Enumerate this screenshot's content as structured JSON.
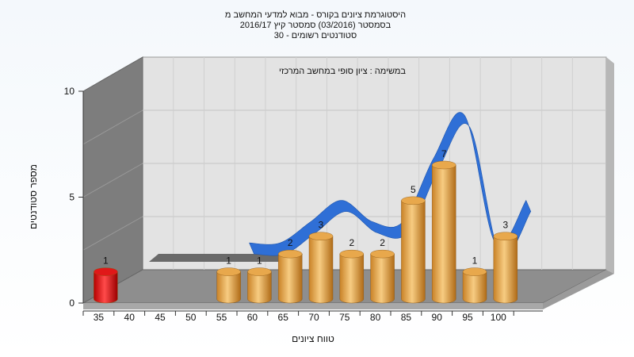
{
  "chart_data": {
    "type": "bar",
    "title_lines": [
      "היסטוגרמת ציונים בקורס - מבוא למדעי המחשב מ",
      "בסמסטר  (03/2016)  סמסטר קיץ  2016/17",
      "סטודנטים רשומים - 30"
    ],
    "annotation": "במשימה : ציון סופי במחשב המרכזי",
    "xlabel": "טווח ציונים",
    "ylabel": "מספר סטודנטים",
    "categories": [
      "35",
      "40",
      "45",
      "50",
      "55",
      "60",
      "65",
      "70",
      "75",
      "80",
      "85",
      "90",
      "95",
      "100"
    ],
    "values": [
      1,
      0,
      0,
      0,
      1,
      1,
      2,
      3,
      2,
      2,
      5,
      7,
      1,
      3
    ],
    "value_labels": [
      "1",
      "",
      "",
      "",
      "1",
      "1",
      "2",
      "3",
      "2",
      "2",
      "5",
      "7",
      "1",
      "3"
    ],
    "y_ticks": [
      "0",
      "5",
      "10"
    ],
    "ylim": [
      0,
      10
    ],
    "colors": {
      "failing_bar": "#e01818",
      "passing_bar": "#e8a84c",
      "curve": "#2f6fd6"
    }
  }
}
